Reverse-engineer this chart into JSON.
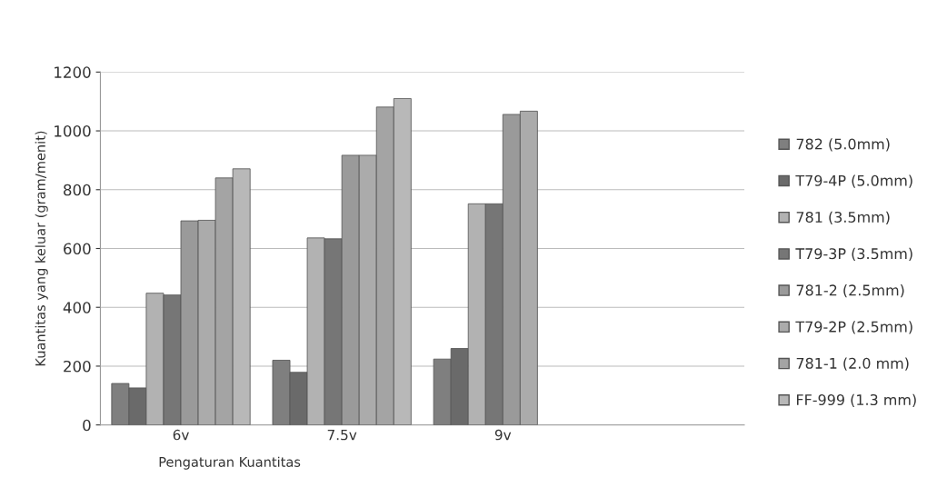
{
  "chart_data": {
    "type": "bar",
    "xlabel": "Pengaturan Kuantitas",
    "ylabel": "Kuantitas yang keluar (gram/menit)",
    "categories": [
      "6v",
      "7.5v",
      "9v",
      null
    ],
    "series": [
      {
        "name": "782 (5.0mm)",
        "color": "#7f7f7f",
        "values": [
          141,
          220,
          224,
          null
        ]
      },
      {
        "name": "T79-4P (5.0mm)",
        "color": "#6a6a6a",
        "values": [
          126,
          179,
          260,
          null
        ]
      },
      {
        "name": "781 (3.5mm)",
        "color": "#b2b2b2",
        "values": [
          448,
          636,
          752,
          null
        ]
      },
      {
        "name": "T79-3P (3.5mm)",
        "color": "#767676",
        "values": [
          442,
          633,
          752,
          null
        ]
      },
      {
        "name": "781-2 (2.5mm)",
        "color": "#9a9a9a",
        "values": [
          694,
          917,
          1056,
          null
        ]
      },
      {
        "name": "T79-2P (2.5mm)",
        "color": "#ababab",
        "values": [
          696,
          917,
          1067,
          null
        ]
      },
      {
        "name": "781-1 (2.0 mm)",
        "color": "#a4a4a4",
        "values": [
          840,
          1081,
          null,
          null
        ]
      },
      {
        "name": "FF-999 (1.3 mm)",
        "color": "#b8b8b8",
        "values": [
          871,
          1110,
          null,
          null
        ]
      }
    ],
    "ylim": [
      0,
      1200
    ],
    "yticks": [
      0,
      200,
      400,
      600,
      800,
      1000,
      1200
    ],
    "grid": "y",
    "legend": "right"
  }
}
